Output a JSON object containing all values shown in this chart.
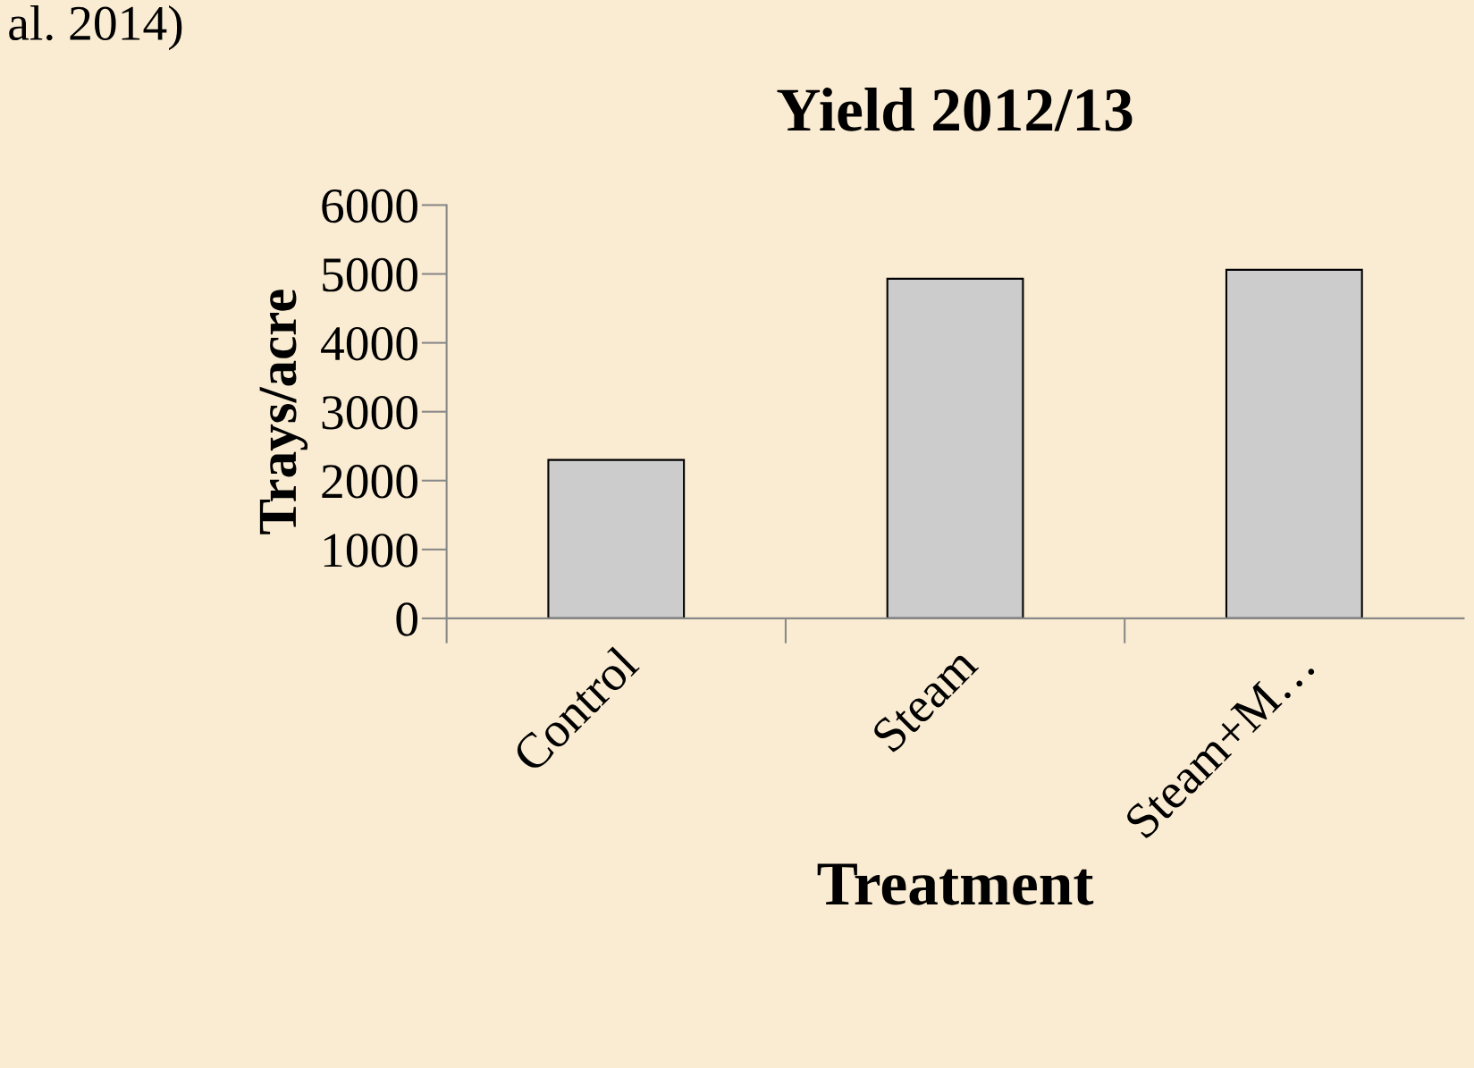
{
  "chart_data": {
    "type": "bar",
    "title": "Yield 2012/13",
    "xlabel": "Treatment",
    "ylabel": "Trays/acre",
    "categories": [
      "Control",
      "Steam",
      "Steam+M…"
    ],
    "values": [
      2300,
      4930,
      5060
    ],
    "color": "#cccccc",
    "ylim": [
      0,
      6000
    ],
    "yticks": [
      0,
      1000,
      2000,
      3000,
      4000,
      5000,
      6000
    ],
    "grid": false,
    "legend": false,
    "annotations": [
      "al. 2014)"
    ]
  }
}
